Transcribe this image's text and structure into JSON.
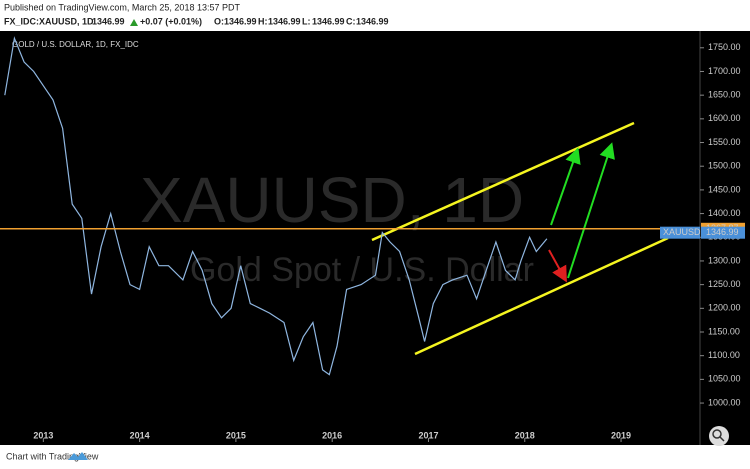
{
  "header": {
    "published": "Published on TradingView.com, March 25, 2018 13:57 PDT",
    "symbol": "FX_IDC:XAUUSD, 1D",
    "last": 1346.99,
    "change": "+0.07 (+0.01%)",
    "ohlc": [
      {
        "label": "O:",
        "value": 1346.99
      },
      {
        "label": "H:",
        "value": 1346.99
      },
      {
        "label": "L:",
        "value": 1346.99
      },
      {
        "label": "C:",
        "value": 1346.99
      }
    ]
  },
  "footer": "Chart with TradingView",
  "chart_data": {
    "type": "line",
    "title": "GOLD / U.S. DOLLAR, 1D, FX_IDC",
    "watermark": "XAUUSD, 1D",
    "watermark_subtitle": "Gold Spot / U.S. Dollar",
    "x": [
      2012.6,
      2012.7,
      2012.8,
      2012.9,
      2013.0,
      2013.1,
      2013.2,
      2013.3,
      2013.4,
      2013.5,
      2013.6,
      2013.7,
      2013.8,
      2013.9,
      2014.0,
      2014.1,
      2014.2,
      2014.3,
      2014.45,
      2014.55,
      2014.65,
      2014.75,
      2014.85,
      2014.95,
      2015.05,
      2015.15,
      2015.25,
      2015.35,
      2015.5,
      2015.6,
      2015.7,
      2015.8,
      2015.9,
      2015.97,
      2016.05,
      2016.15,
      2016.3,
      2016.45,
      2016.52,
      2016.6,
      2016.7,
      2016.8,
      2016.9,
      2016.96,
      2017.05,
      2017.15,
      2017.25,
      2017.4,
      2017.5,
      2017.6,
      2017.7,
      2017.8,
      2017.9,
      2017.96,
      2018.05,
      2018.12,
      2018.23
    ],
    "series": [
      {
        "name": "XAUUSD",
        "color": "#8fb6e0",
        "values": [
          1650,
          1770,
          1720,
          1700,
          1670,
          1640,
          1580,
          1420,
          1390,
          1230,
          1330,
          1400,
          1320,
          1250,
          1240,
          1330,
          1290,
          1290,
          1260,
          1320,
          1280,
          1210,
          1180,
          1200,
          1290,
          1210,
          1200,
          1190,
          1170,
          1090,
          1140,
          1170,
          1070,
          1060,
          1120,
          1240,
          1250,
          1270,
          1360,
          1340,
          1320,
          1260,
          1180,
          1130,
          1210,
          1250,
          1260,
          1270,
          1220,
          1280,
          1340,
          1280,
          1260,
          1300,
          1350,
          1320,
          1346.99
        ]
      }
    ],
    "xlim": [
      2012.55,
      2019.82
    ],
    "xticks": [
      2013,
      2014,
      2015,
      2016,
      2017,
      2018,
      2019
    ],
    "ylim": [
      922,
      1777
    ],
    "yticks": [
      {
        "value": 1000,
        "label": "1000.00"
      },
      {
        "value": 1050,
        "label": "1050.00"
      },
      {
        "value": 1100,
        "label": "1100.00"
      },
      {
        "value": 1150,
        "label": "1150.00"
      },
      {
        "value": 1200,
        "label": "1200.00"
      },
      {
        "value": 1250,
        "label": "1250.00"
      },
      {
        "value": 1300,
        "label": "1300.00"
      },
      {
        "value": 1350,
        "label": "1350.00"
      },
      {
        "value": 1400,
        "label": "1400.00"
      },
      {
        "value": 1450,
        "label": "1450.00"
      },
      {
        "value": 1500,
        "label": "1500.00"
      },
      {
        "value": 1550,
        "label": "1550.00"
      },
      {
        "value": 1600,
        "label": "1600.00"
      },
      {
        "value": 1650,
        "label": "1650.00"
      },
      {
        "value": 1700,
        "label": "1700.00"
      },
      {
        "value": 1750,
        "label": "1750.00"
      }
    ],
    "hline": {
      "value": 1367.87,
      "color": "#f0a030"
    },
    "price_label": {
      "name": "XAUUSD",
      "value": 1346.99,
      "color": "#4a90d9"
    }
  }
}
